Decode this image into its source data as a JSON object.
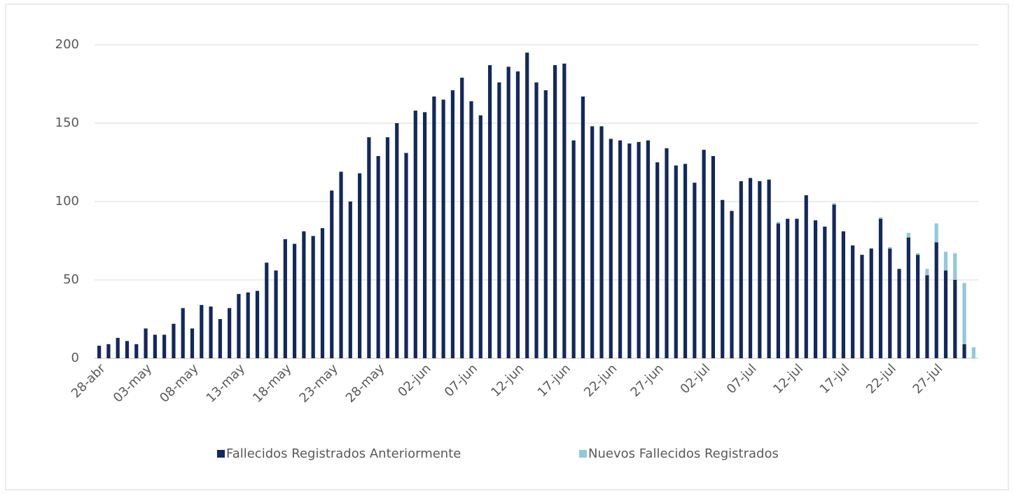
{
  "chart_data": {
    "type": "stacked-bar",
    "categories": [
      "28-abr",
      null,
      null,
      null,
      null,
      "03-may",
      null,
      null,
      null,
      null,
      "08-may",
      null,
      null,
      null,
      null,
      "13-may",
      null,
      null,
      null,
      null,
      "18-may",
      null,
      null,
      null,
      null,
      "23-may",
      null,
      null,
      null,
      null,
      "28-may",
      null,
      null,
      null,
      null,
      "02-jun",
      null,
      null,
      null,
      null,
      "07-jun",
      null,
      null,
      null,
      null,
      "12-jun",
      null,
      null,
      null,
      null,
      "17-jun",
      null,
      null,
      null,
      null,
      "22-jun",
      null,
      null,
      null,
      null,
      "27-jun",
      null,
      null,
      null,
      null,
      "02-jul",
      null,
      null,
      null,
      null,
      "07-jul",
      null,
      null,
      null,
      null,
      "12-jul",
      null,
      null,
      null,
      null,
      "17-jul",
      null,
      null,
      null,
      null,
      "22-jul",
      null,
      null,
      null,
      null,
      "27-jul",
      null,
      null,
      null,
      null
    ],
    "series": [
      {
        "name": "Fallecidos Registrados Anteriormente",
        "color": "#13285e",
        "values": [
          8,
          9,
          13,
          11,
          9,
          19,
          15,
          15,
          22,
          32,
          19,
          34,
          33,
          25,
          32,
          41,
          42,
          43,
          61,
          56,
          76,
          73,
          81,
          78,
          83,
          107,
          119,
          100,
          118,
          141,
          129,
          141,
          150,
          131,
          158,
          157,
          167,
          165,
          171,
          179,
          164,
          155,
          187,
          176,
          186,
          183,
          195,
          176,
          171,
          187,
          188,
          139,
          167,
          148,
          148,
          140,
          139,
          137,
          138,
          139,
          125,
          134,
          123,
          124,
          112,
          133,
          129,
          101,
          94,
          113,
          115,
          113,
          114,
          86,
          89,
          89,
          104,
          88,
          84,
          98,
          81,
          72,
          66,
          70,
          89,
          70,
          57,
          77,
          66,
          53,
          74,
          56,
          50,
          9,
          0
        ]
      },
      {
        "name": "Nuevos Fallecidos Registrados",
        "color": "#92c9d9",
        "values": [
          0,
          0,
          0,
          0,
          0,
          0,
          0,
          0,
          0,
          0,
          0,
          0,
          0,
          0,
          0,
          0,
          0,
          0,
          0,
          0,
          0,
          0,
          0,
          0,
          0,
          0,
          0,
          0,
          0,
          0,
          0,
          0,
          0,
          0,
          0,
          0,
          0,
          0,
          0,
          0,
          0,
          0,
          0,
          0,
          0,
          0,
          0,
          0,
          0,
          0,
          0,
          0,
          0,
          0,
          0,
          0,
          0,
          0,
          0,
          0,
          0,
          0,
          0,
          0,
          0,
          0,
          0,
          0,
          0,
          0,
          0,
          0,
          0,
          1,
          0,
          0,
          0,
          0,
          0,
          1,
          0,
          0,
          0,
          0,
          1,
          1,
          0,
          3,
          1,
          4,
          12,
          12,
          17,
          39,
          7
        ]
      }
    ],
    "ylim": [
      0,
      200
    ],
    "yticks": [
      0,
      50,
      100,
      150,
      200
    ],
    "grid": true,
    "legend": "bottom"
  }
}
